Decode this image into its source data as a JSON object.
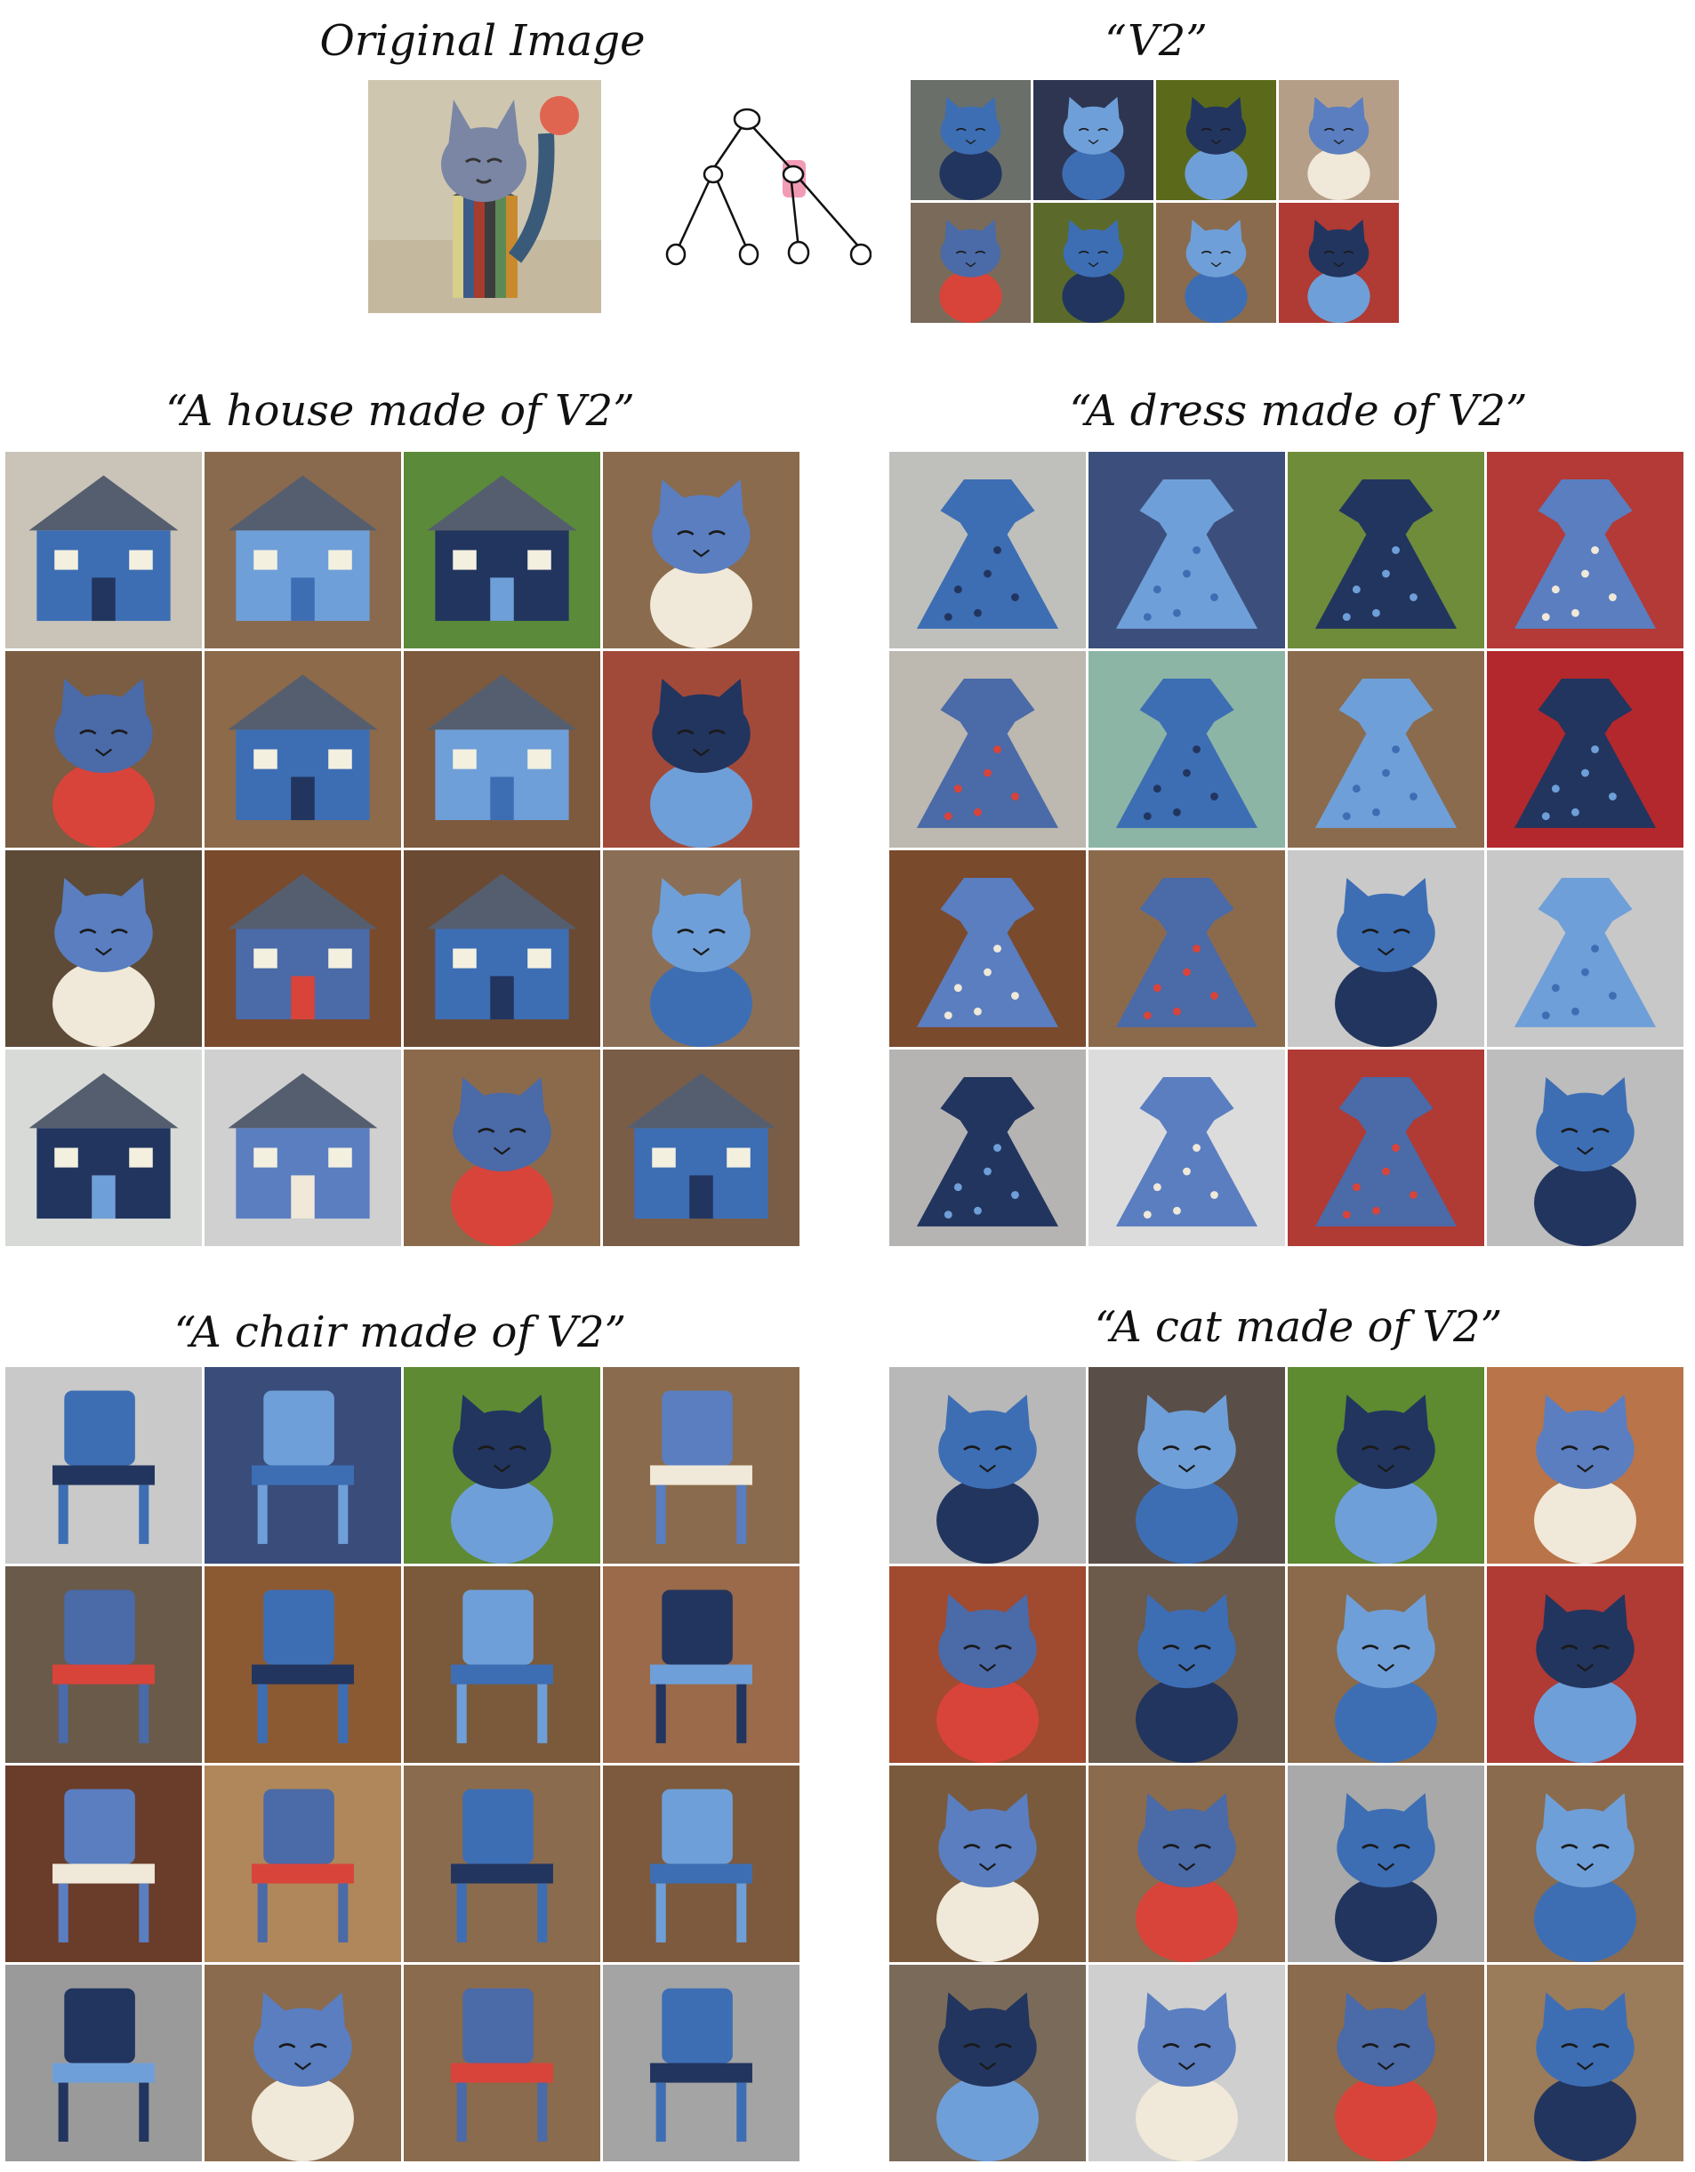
{
  "top": {
    "original_caption": "Original Image",
    "v2_caption": "“V2”"
  },
  "panels": [
    {
      "id": "house",
      "caption": "“A house made of V2”"
    },
    {
      "id": "dress",
      "caption": "“A dress made of V2”"
    },
    {
      "id": "chair",
      "caption": "“A chair made of V2”"
    },
    {
      "id": "cat",
      "caption": "“A cat made of V2”"
    }
  ],
  "icons": {
    "tree": "tree-diagram-icon",
    "highlight_color": "#f08aa8"
  },
  "colors": {
    "accent_blue": "#3d6eb4",
    "light_blue": "#6f9fd8",
    "navy": "#22355f"
  },
  "subjects": {
    "house": [
      "house",
      "house",
      "house",
      "cat-sign",
      "cat",
      "house",
      "house",
      "cat-box",
      "cat",
      "house",
      "house",
      "cat-sign",
      "house",
      "house",
      "cat",
      "house"
    ],
    "dress": [
      "dress",
      "cat-dress",
      "cat-dress",
      "dress",
      "dress",
      "dress",
      "cat-dress",
      "dress",
      "dress",
      "dress",
      "doll",
      "dress",
      "dress",
      "dress",
      "dress",
      "cat-figure"
    ],
    "chair": [
      "chair",
      "chair",
      "cat",
      "stool",
      "chair",
      "chair",
      "chair",
      "chair",
      "chair",
      "chair",
      "chair",
      "chair",
      "chair",
      "cat",
      "chair",
      "stool"
    ],
    "cat": [
      "cat",
      "cat",
      "cat",
      "cat",
      "cat",
      "cat",
      "cat",
      "cat",
      "cat",
      "cat",
      "cat",
      "cat",
      "cat",
      "cat",
      "cat",
      "cat"
    ],
    "v2": [
      "cat",
      "cat",
      "cat",
      "cat",
      "cat",
      "cat",
      "cat",
      "cat"
    ]
  },
  "backgrounds": {
    "house": [
      "#c9c3b8",
      "#8a6a4e",
      "#5b8a3a",
      "#8a6b4d",
      "#7a5d42",
      "#8c6a4a",
      "#7d5a3d",
      "#a24a39",
      "#5d4b38",
      "#7a4a2c",
      "#6b4a34",
      "#8a6e56",
      "#d7dad7",
      "#d0d0d0",
      "#8b6a4c",
      "#7a5d46"
    ],
    "dress": [
      "#bfc0bc",
      "#3c4f7c",
      "#6e8c3a",
      "#b33a36",
      "#bdb8b0",
      "#8cb5a5",
      "#8a6b4d",
      "#b3282c",
      "#7a4a2c",
      "#8b6a4c",
      "#c9c9c9",
      "#c8c8c8",
      "#b5b4b3",
      "#dcdcdc",
      "#b03a34",
      "#bdbdbd"
    ],
    "chair": [
      "#c9c9c9",
      "#3a4c7a",
      "#5e8a34",
      "#8a6b4d",
      "#6a5a4a",
      "#8c5a32",
      "#7a5a3a",
      "#9a6a4a",
      "#6a3c2a",
      "#b0875a",
      "#8a6b4d",
      "#7d5a3d",
      "#9a9a9a",
      "#8a6b4d",
      "#8a6b4d",
      "#a4a4a4"
    ],
    "cat": [
      "#b8b8b8",
      "#5a4e48",
      "#5e8a30",
      "#b9744a",
      "#a04a30",
      "#6c5a4a",
      "#8a6a4a",
      "#b03a34",
      "#7a5a3d",
      "#8a6b4d",
      "#a9a9a9",
      "#8a6b4d",
      "#7a6a5a",
      "#cfcfcf",
      "#8a6b4d",
      "#9a7b5a"
    ],
    "v2": [
      "#6a6f6a",
      "#2e3550",
      "#5a6a1a",
      "#b59e88",
      "#7a6a5a",
      "#5b6a2a",
      "#8a6b4d",
      "#b03a34"
    ]
  }
}
